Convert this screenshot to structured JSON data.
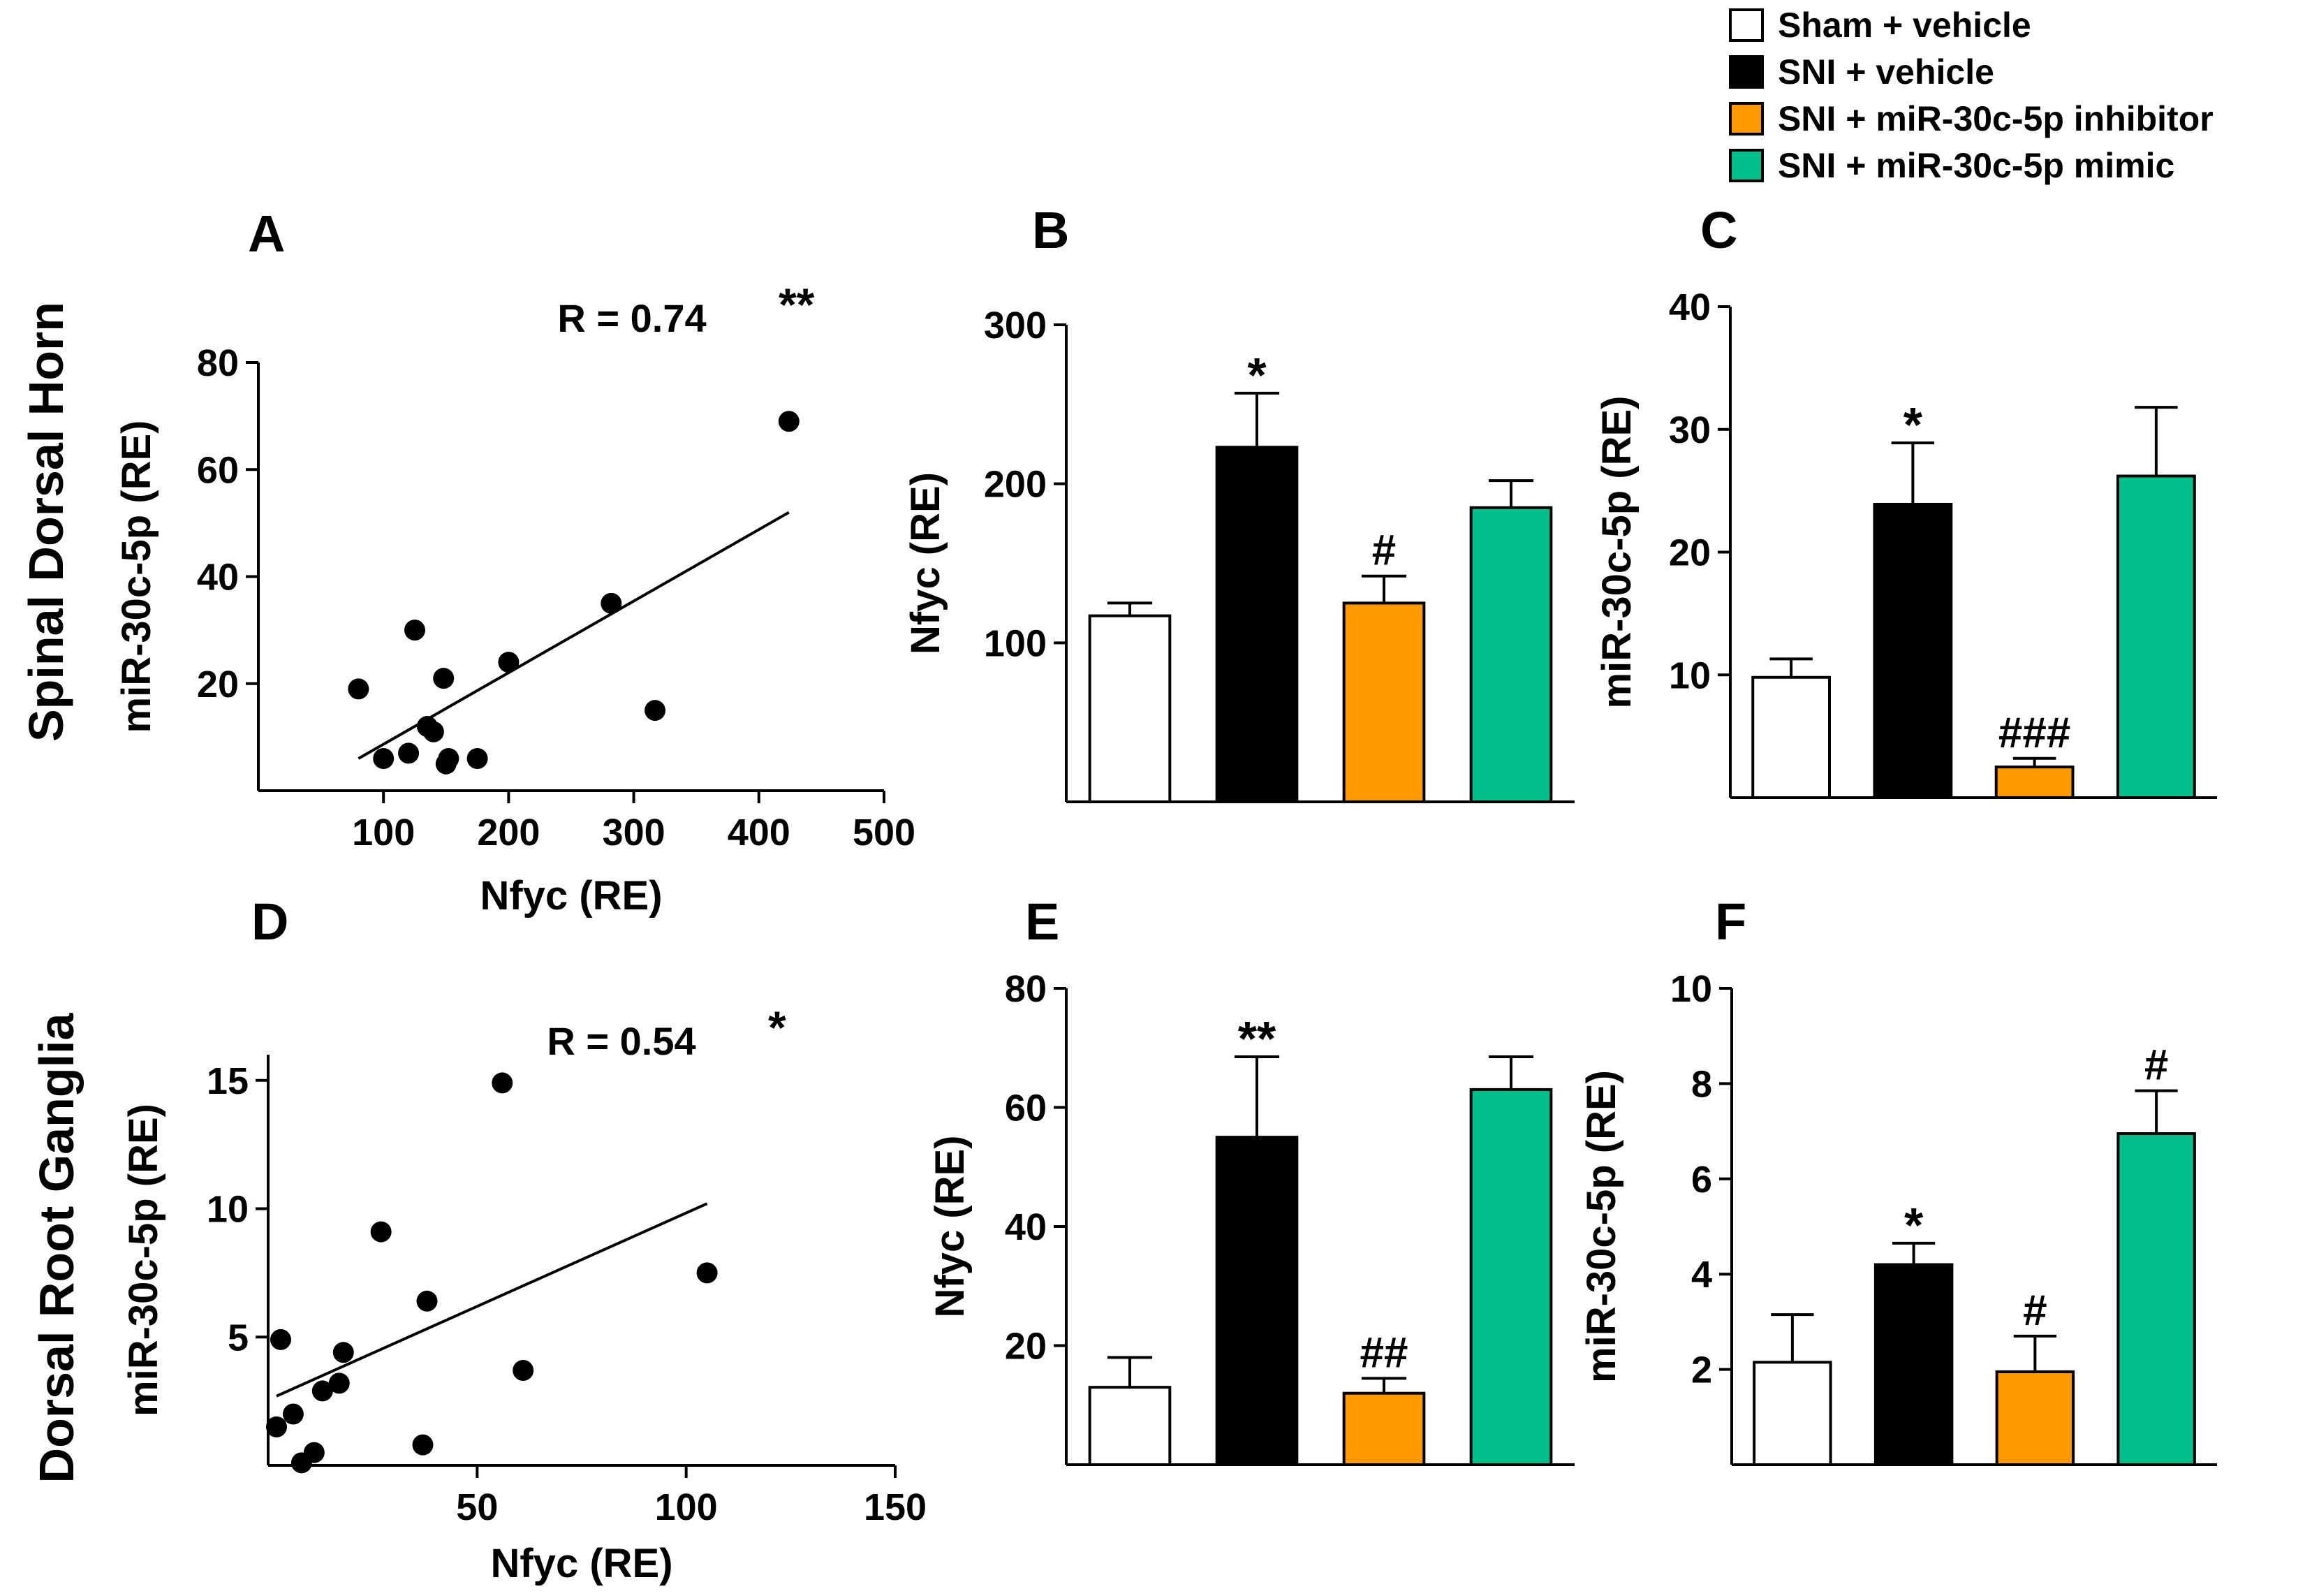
{
  "row_labels": [
    "Spinal Dorsal Horn",
    "Dorsal Root Ganglia"
  ],
  "legend": [
    {
      "label": "Sham + vehicle",
      "color": "#ffffff"
    },
    {
      "label": "SNI + vehicle",
      "color": "#000000"
    },
    {
      "label": "SNI + miR-30c-5p inhibitor",
      "color": "#ff9900"
    },
    {
      "label": "SNI + miR-30c-5p mimic",
      "color": "#00bf8a"
    }
  ],
  "chart_data": [
    {
      "panel": "A",
      "type": "scatter",
      "annotation": "R = 0.74",
      "significance": "**",
      "xlabel": "Nfyc (RE)",
      "ylabel": "miR-30c-5p (RE)",
      "xlim": [
        0,
        500
      ],
      "ylim": [
        0,
        80
      ],
      "xticks": [
        "100",
        "200",
        "300",
        "400",
        "500"
      ],
      "yticks": [
        "20",
        "40",
        "60",
        "80"
      ],
      "points": [
        [
          80,
          19
        ],
        [
          100,
          6
        ],
        [
          120,
          7
        ],
        [
          125,
          30
        ],
        [
          135,
          12
        ],
        [
          140,
          11
        ],
        [
          148,
          21
        ],
        [
          150,
          5
        ],
        [
          152,
          6
        ],
        [
          175,
          6
        ],
        [
          200,
          24
        ],
        [
          282,
          35
        ],
        [
          317,
          15
        ],
        [
          424,
          69
        ]
      ],
      "fit_line": [
        [
          80,
          6
        ],
        [
          424,
          52
        ]
      ]
    },
    {
      "panel": "B",
      "type": "bar",
      "ylabel": "Nfyc (RE)",
      "ylim": [
        0,
        300
      ],
      "yticks": [
        "100",
        "200",
        "300"
      ],
      "values": [
        117,
        223,
        125,
        185
      ],
      "errors": [
        8,
        34,
        17,
        17
      ],
      "significance": [
        "",
        "*",
        "#",
        ""
      ]
    },
    {
      "panel": "C",
      "type": "bar",
      "ylabel": "miR-30c-5p (RE)",
      "ylim": [
        0,
        40
      ],
      "yticks": [
        "10",
        "20",
        "30",
        "40"
      ],
      "values": [
        9.8,
        23.9,
        2.5,
        26.2
      ],
      "errors": [
        1.5,
        5.0,
        0.7,
        5.6
      ],
      "significance": [
        "",
        "*",
        "###",
        ""
      ]
    },
    {
      "panel": "D",
      "type": "scatter",
      "annotation": "R = 0.54",
      "significance": "*",
      "xlabel": "Nfyc (RE)",
      "ylabel": "miR-30c-5p (RE)",
      "xlim": [
        0,
        150
      ],
      "ylim": [
        0,
        16
      ],
      "xticks": [
        "50",
        "100",
        "150"
      ],
      "yticks": [
        "5",
        "10",
        "15"
      ],
      "points": [
        [
          2,
          1.5
        ],
        [
          3,
          4.9
        ],
        [
          6,
          2.0
        ],
        [
          8,
          0.1
        ],
        [
          11,
          0.5
        ],
        [
          13,
          2.9
        ],
        [
          17,
          3.2
        ],
        [
          18,
          4.4
        ],
        [
          27,
          9.1
        ],
        [
          37,
          0.8
        ],
        [
          38,
          6.4
        ],
        [
          56,
          14.9
        ],
        [
          61,
          3.7
        ],
        [
          105,
          7.5
        ]
      ],
      "fit_line": [
        [
          2,
          2.7
        ],
        [
          105,
          10.2
        ]
      ]
    },
    {
      "panel": "E",
      "type": "bar",
      "ylabel": "Nfyc (RE)",
      "ylim": [
        0,
        80
      ],
      "yticks": [
        "20",
        "40",
        "60",
        "80"
      ],
      "values": [
        13,
        55,
        12,
        63
      ],
      "errors": [
        5,
        13.5,
        2.5,
        5.5
      ],
      "significance": [
        "",
        "**",
        "##",
        ""
      ]
    },
    {
      "panel": "F",
      "type": "bar",
      "ylabel": "miR-30c-5p (RE)",
      "ylim": [
        0,
        10
      ],
      "yticks": [
        "2",
        "4",
        "6",
        "8",
        "10"
      ],
      "values": [
        2.15,
        4.2,
        1.95,
        6.95
      ],
      "errors": [
        1.0,
        0.45,
        0.75,
        0.9
      ],
      "significance": [
        "",
        "*",
        "#",
        "#"
      ]
    }
  ]
}
